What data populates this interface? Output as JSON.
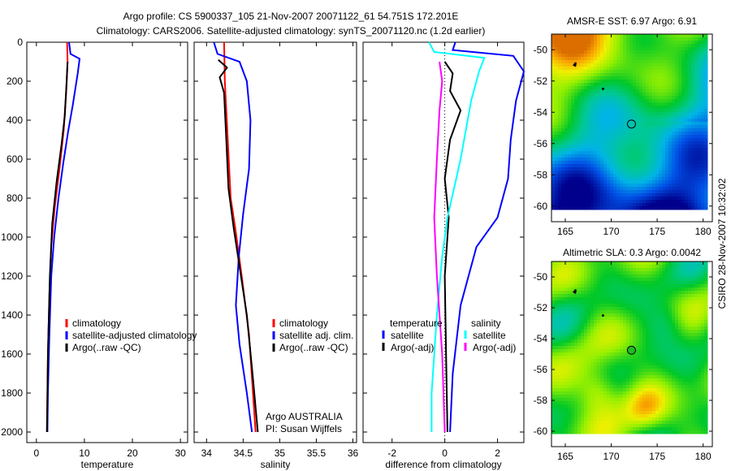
{
  "title_line1": "Argo profile: CS 5900337_105 21-Nov-2007 20071122_61 54.751S 172.201E",
  "title_line2": "Climatology: CARS2006. Satellite-adjusted climatology: synTS_20071120.nc (1.2d earlier)",
  "side_label": "CSIRO 28-Nov-2007 10:32:02",
  "colors": {
    "red": "#ff0000",
    "blue": "#0000ff",
    "black": "#000000",
    "cyan": "#00ffff",
    "magenta": "#ff00ff"
  },
  "chart_data": [
    {
      "type": "line",
      "xlabel": "temperature",
      "ylabel": "",
      "xlim": [
        -2,
        31.5
      ],
      "ylim": [
        2000,
        0
      ],
      "xticks": [
        "0",
        "10",
        "20",
        "30"
      ],
      "xtick_values": [
        0,
        10,
        20,
        30
      ],
      "yticks": [
        "0",
        "200",
        "400",
        "600",
        "800",
        "1000",
        "1200",
        "1400",
        "1600",
        "1800",
        "2000"
      ],
      "ytick_values": [
        0,
        200,
        400,
        600,
        800,
        1000,
        1200,
        1400,
        1600,
        1800,
        2000
      ],
      "legend": [
        "climatology",
        "satellite-adjusted climatology",
        "Argo(..raw -QC)"
      ],
      "series": [
        {
          "name": "climatology",
          "color": "red",
          "points": [
            [
              6.4,
              0
            ],
            [
              6.5,
              100
            ],
            [
              6.2,
              250
            ],
            [
              5.7,
              450
            ],
            [
              4.8,
              650
            ],
            [
              3.8,
              850
            ],
            [
              3.1,
              1050
            ],
            [
              2.7,
              1300
            ],
            [
              2.4,
              1600
            ],
            [
              2.2,
              2000
            ]
          ]
        },
        {
          "name": "satellite-adjusted climatology",
          "color": "blue",
          "points": [
            [
              6.8,
              0
            ],
            [
              7.1,
              60
            ],
            [
              9.0,
              85
            ],
            [
              8.6,
              160
            ],
            [
              7.6,
              320
            ],
            [
              6.6,
              460
            ],
            [
              5.6,
              620
            ],
            [
              4.6,
              800
            ],
            [
              3.7,
              1000
            ],
            [
              3.1,
              1200
            ],
            [
              2.7,
              1500
            ],
            [
              2.4,
              1800
            ],
            [
              2.3,
              2000
            ]
          ]
        },
        {
          "name": "Argo(..raw -QC)",
          "color": "black",
          "points": [
            [
              6.5,
              100
            ],
            [
              6.3,
              200
            ],
            [
              5.9,
              380
            ],
            [
              5.2,
              530
            ],
            [
              4.2,
              720
            ],
            [
              3.3,
              930
            ],
            [
              2.8,
              1200
            ],
            [
              2.4,
              1600
            ],
            [
              2.2,
              2000
            ]
          ]
        }
      ]
    },
    {
      "type": "line",
      "xlabel": "salinity",
      "xlim": [
        33.83,
        36.05
      ],
      "ylim": [
        2000,
        0
      ],
      "xticks": [
        "34",
        "34.5",
        "35",
        "35.5",
        "36"
      ],
      "xtick_values": [
        34,
        34.5,
        35,
        35.5,
        36
      ],
      "legend": [
        "climatology",
        "satellite adj. clim.",
        "Argo(..raw -QC)"
      ],
      "annotation": [
        "Argo AUSTRALIA",
        "PI: Susan Wijffels"
      ],
      "series": [
        {
          "name": "climatology",
          "color": "red",
          "points": [
            [
              34.24,
              0
            ],
            [
              34.25,
              200
            ],
            [
              34.29,
              500
            ],
            [
              34.33,
              800
            ],
            [
              34.39,
              950
            ],
            [
              34.48,
              1200
            ],
            [
              34.58,
              1500
            ],
            [
              34.67,
              2000
            ]
          ]
        },
        {
          "name": "satellite adj. clim.",
          "color": "blue",
          "points": [
            [
              34.1,
              0
            ],
            [
              34.15,
              60
            ],
            [
              34.45,
              100
            ],
            [
              34.55,
              200
            ],
            [
              34.6,
              400
            ],
            [
              34.58,
              650
            ],
            [
              34.5,
              880
            ],
            [
              34.44,
              1100
            ],
            [
              34.4,
              1350
            ],
            [
              34.45,
              1550
            ],
            [
              34.55,
              1800
            ],
            [
              34.62,
              2000
            ]
          ]
        },
        {
          "name": "Argo(..raw -QC)",
          "color": "black",
          "points": [
            [
              34.16,
              90
            ],
            [
              34.28,
              130
            ],
            [
              34.18,
              180
            ],
            [
              34.24,
              260
            ],
            [
              34.27,
              500
            ],
            [
              34.3,
              750
            ],
            [
              34.37,
              950
            ],
            [
              34.45,
              1150
            ],
            [
              34.55,
              1400
            ],
            [
              34.64,
              1750
            ],
            [
              34.7,
              2000
            ]
          ]
        }
      ]
    },
    {
      "type": "line",
      "xlabel": "difference from climatology",
      "xlim": [
        -3.1,
        3.0
      ],
      "ylim": [
        2000,
        0
      ],
      "xticks": [
        "-2",
        "0",
        "2"
      ],
      "xtick_values": [
        -2,
        0,
        2
      ],
      "legend_titles": [
        "temperature",
        "salinity"
      ],
      "legend": [
        "satellite",
        "Argo(-adj)",
        "satellite",
        "Argo(-adj)"
      ],
      "series": [
        {
          "name": "temperature satellite",
          "color": "blue",
          "points": [
            [
              0.4,
              0
            ],
            [
              0.3,
              40
            ],
            [
              2.6,
              70
            ],
            [
              3.0,
              150
            ],
            [
              2.7,
              300
            ],
            [
              2.5,
              500
            ],
            [
              2.4,
              700
            ],
            [
              2.0,
              900
            ],
            [
              1.2,
              1050
            ],
            [
              0.6,
              1350
            ],
            [
              0.3,
              1700
            ],
            [
              0.2,
              2000
            ]
          ]
        },
        {
          "name": "temperature Argo(-adj)",
          "color": "black",
          "points": [
            [
              0.0,
              100
            ],
            [
              0.3,
              160
            ],
            [
              0.2,
              250
            ],
            [
              0.6,
              350
            ],
            [
              0.2,
              500
            ],
            [
              0.0,
              700
            ],
            [
              0.15,
              900
            ],
            [
              0.0,
              1200
            ],
            [
              0.05,
              1600
            ],
            [
              0.1,
              2000
            ]
          ]
        },
        {
          "name": "salinity satellite",
          "color": "cyan",
          "points": [
            [
              -0.6,
              0
            ],
            [
              -0.4,
              50
            ],
            [
              1.5,
              80
            ],
            [
              1.3,
              150
            ],
            [
              1.0,
              300
            ],
            [
              0.6,
              600
            ],
            [
              0.1,
              900
            ],
            [
              -0.1,
              1100
            ],
            [
              -0.3,
              1400
            ],
            [
              -0.5,
              1800
            ],
            [
              -0.5,
              2000
            ]
          ]
        },
        {
          "name": "salinity Argo(-adj)",
          "color": "magenta",
          "points": [
            [
              -0.2,
              100
            ],
            [
              -0.1,
              200
            ],
            [
              -0.2,
              350
            ],
            [
              -0.3,
              600
            ],
            [
              -0.4,
              900
            ],
            [
              -0.3,
              1200
            ],
            [
              -0.1,
              1600
            ],
            [
              0.0,
              2000
            ]
          ]
        }
      ]
    },
    {
      "type": "heatmap",
      "title": "AMSR-E SST: 6.97 Argo: 6.91",
      "xlim": [
        163.5,
        181
      ],
      "ylim": [
        -61,
        -49
      ],
      "xticks": [
        "165",
        "170",
        "175",
        "180"
      ],
      "xtick_values": [
        165,
        170,
        175,
        180
      ],
      "yticks": [
        "-50",
        "-52",
        "-54",
        "-56",
        "-58",
        "-60"
      ],
      "ytick_values": [
        -50,
        -52,
        -54,
        -56,
        -58,
        -60
      ],
      "argo_position": [
        172.201,
        -54.751
      ]
    },
    {
      "type": "heatmap",
      "title": "Altimetric SLA: 0.3 Argo: 0.0042",
      "xlim": [
        163.5,
        181
      ],
      "ylim": [
        -61,
        -49
      ],
      "xticks": [
        "165",
        "170",
        "175",
        "180"
      ],
      "xtick_values": [
        165,
        170,
        175,
        180
      ],
      "yticks": [
        "-50",
        "-52",
        "-54",
        "-56",
        "-58",
        "-60"
      ],
      "ytick_values": [
        -50,
        -52,
        -54,
        -56,
        -58,
        -60
      ],
      "argo_position": [
        172.201,
        -54.751
      ]
    }
  ]
}
